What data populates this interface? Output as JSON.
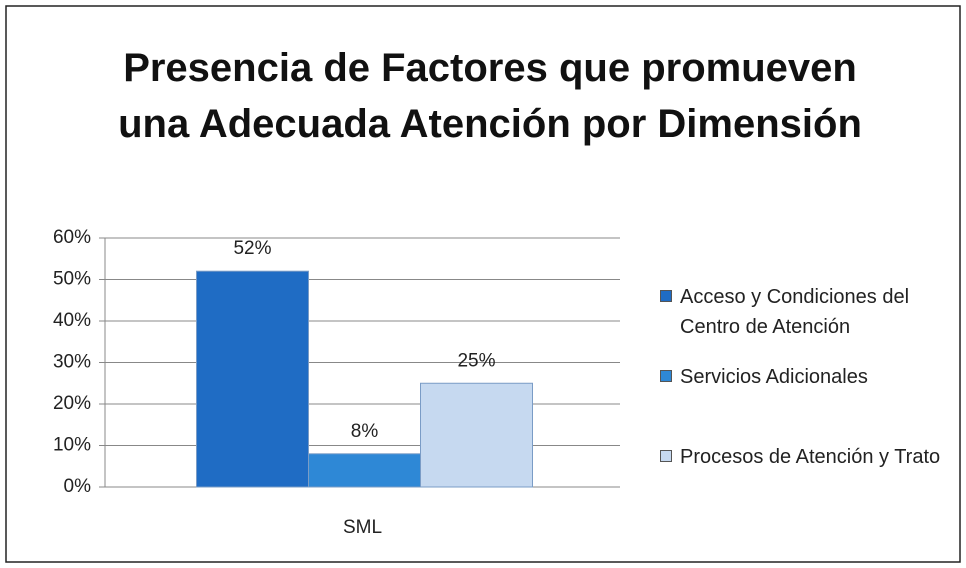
{
  "chart_data": {
    "type": "bar",
    "title": "Presencia de Factores que promueven una Adecuada Atención por Dimensión",
    "categories": [
      "SML"
    ],
    "series": [
      {
        "name": "Acceso y Condiciones del Centro de Atención",
        "color": "#1f6cc4",
        "values": [
          52
        ],
        "value_labels": [
          "52%"
        ]
      },
      {
        "name": "Servicios Adicionales",
        "color": "#2e88d6",
        "values": [
          8
        ],
        "value_labels": [
          "8%"
        ]
      },
      {
        "name": "Procesos de Atención y Trato",
        "color": "#c6d9f0",
        "values": [
          25
        ],
        "value_labels": [
          "25%"
        ]
      }
    ],
    "ylim": [
      0,
      60
    ],
    "yticks": [
      {
        "value": 0,
        "label": "0%"
      },
      {
        "value": 10,
        "label": "10%"
      },
      {
        "value": 20,
        "label": "20%"
      },
      {
        "value": 30,
        "label": "30%"
      },
      {
        "value": 40,
        "label": "40%"
      },
      {
        "value": 50,
        "label": "50%"
      },
      {
        "value": 60,
        "label": "60%"
      }
    ],
    "grid": true,
    "legend": "right"
  }
}
